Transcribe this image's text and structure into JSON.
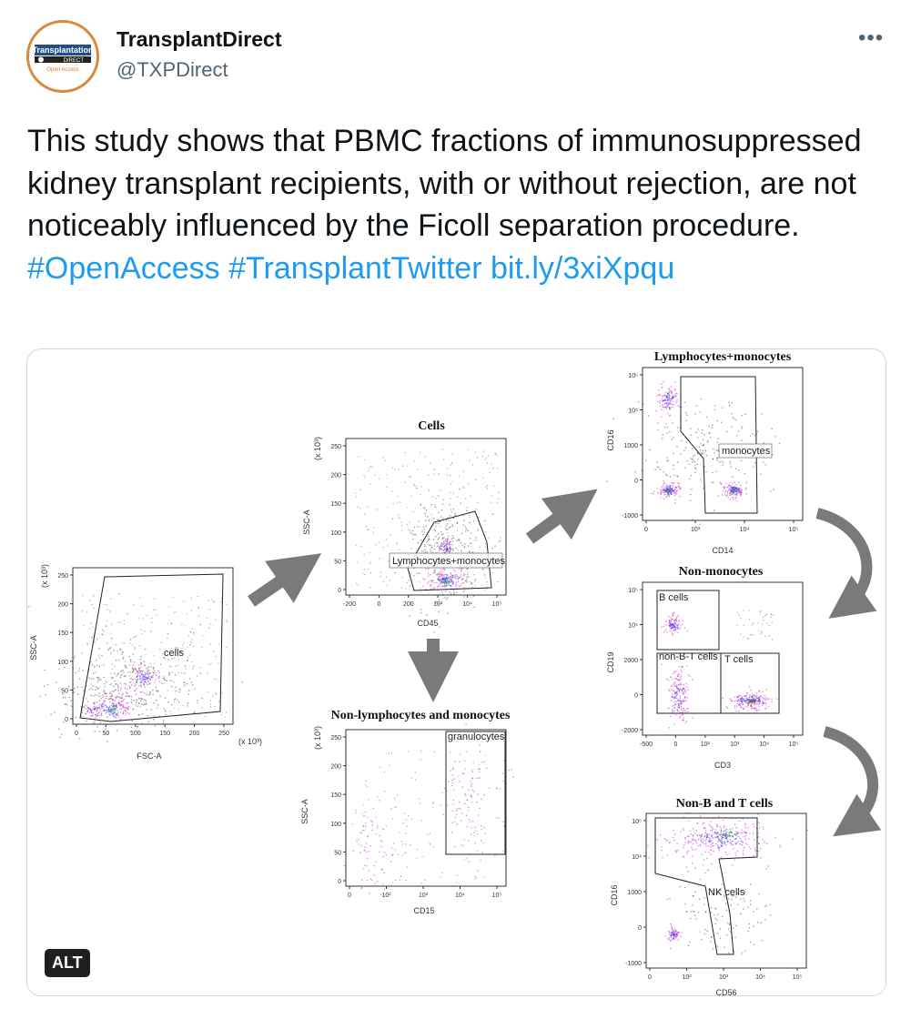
{
  "author": {
    "name": "TransplantDirect",
    "handle": "@TXPDirect",
    "avatar": {
      "line1": "Transplantation",
      "line2": "DIRECT",
      "line3": "Open Access"
    }
  },
  "tweet": {
    "body": "This study shows that PBMC fractions of immunosuppressed kidney transplant recipients, with or without rejection, are not noticeably influenced by the Ficoll separation procedure.",
    "hashtag1": "#OpenAccess",
    "hashtag2": "#TransplantTwitter",
    "link": "bit.ly/3xiXpqu"
  },
  "more_label": "•••",
  "alt_label": "ALT",
  "figure": {
    "plot1": {
      "xlabel": "FSC-A",
      "ylabel": "SSC-A",
      "gate": "cells",
      "x_unit": "(x 10³)",
      "y_unit": "(x 10³)",
      "xticks": [
        "0",
        "50",
        "100",
        "150",
        "200",
        "250"
      ],
      "yticks": [
        "0",
        "50",
        "100",
        "150",
        "200",
        "250"
      ]
    },
    "plot2": {
      "title": "Cells",
      "xlabel": "CD45",
      "ylabel": "SSC-A",
      "gate": "Lymphocytes+monocytes",
      "y_unit": "(x 10³)",
      "xticks": [
        "-200",
        "0",
        "200",
        "10³",
        "10⁴",
        "10⁵"
      ],
      "yticks": [
        "0",
        "50",
        "100",
        "150",
        "200",
        "250"
      ]
    },
    "plot3": {
      "title": "Non-lymphocytes and monocytes",
      "xlabel": "CD15",
      "ylabel": "SSC-A",
      "gate": "granulocytes",
      "y_unit": "(x 10³)",
      "xticks": [
        "0",
        "10²",
        "10³",
        "10⁴",
        "10⁵"
      ],
      "yticks": [
        "0",
        "50",
        "100",
        "150",
        "200",
        "250"
      ]
    },
    "plot4": {
      "title": "Lymphocytes+monocytes",
      "xlabel": "CD14",
      "ylabel": "CD16",
      "gate": "monocytes",
      "xticks": [
        "0",
        "10³",
        "10⁴",
        "10⁵"
      ],
      "yticks": [
        "-1000",
        "0",
        "1000",
        "10⁴",
        "10⁵"
      ]
    },
    "plot5": {
      "title": "Non-monocytes",
      "xlabel": "CD3",
      "ylabel": "CD19",
      "gate1": "B cells",
      "gate2": "non-B-T cells",
      "gate3": "T cells",
      "xticks": [
        "-500",
        "0",
        "10²",
        "10³",
        "10⁴",
        "10⁵"
      ],
      "yticks": [
        "-2000",
        "0",
        "2000",
        "10⁴",
        "10⁵"
      ]
    },
    "plot6": {
      "title": "Non-B and T cells",
      "xlabel": "CD56",
      "ylabel": "CD16",
      "gate": "NK cells",
      "xticks": [
        "0",
        "10²",
        "10³",
        "10⁴",
        "10⁵"
      ],
      "yticks": [
        "-1000",
        "0",
        "1000",
        "10⁴",
        "10⁵"
      ]
    }
  }
}
